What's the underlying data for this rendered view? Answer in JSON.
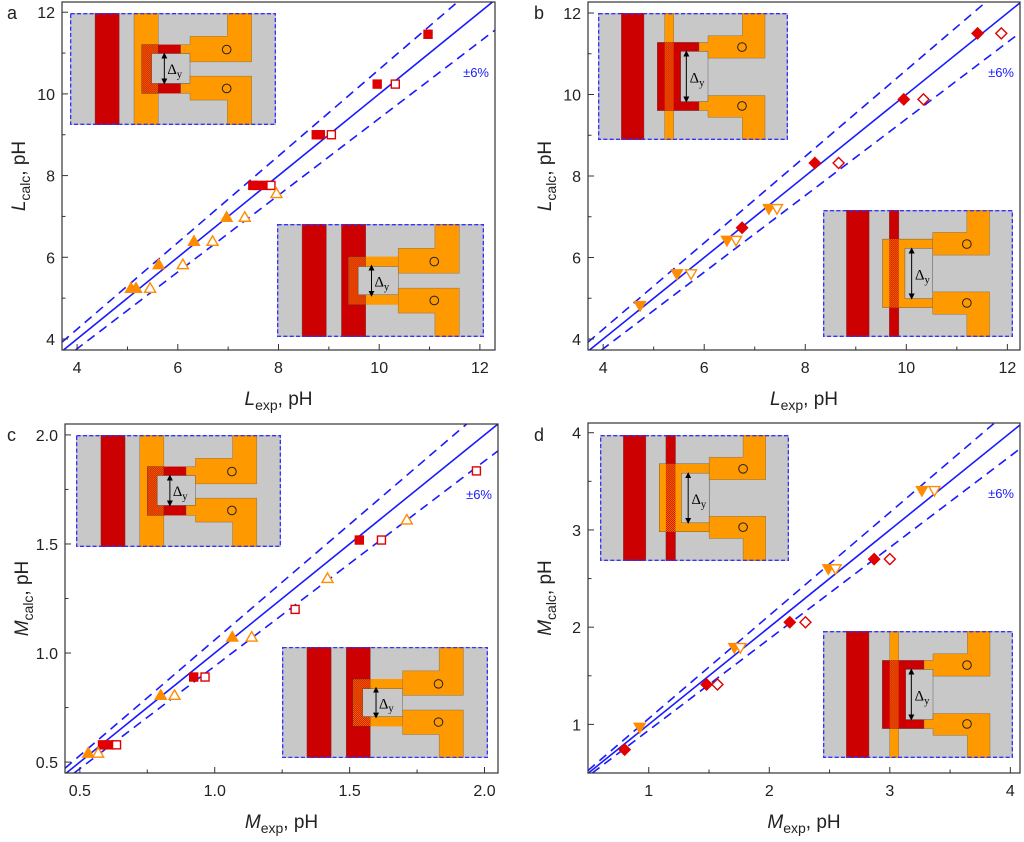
{
  "colors": {
    "line": "#1a1aff",
    "red": "#e00000",
    "orange": "#ff8c00",
    "inset_gray": "#c8c8c8",
    "inset_red": "#cc0000",
    "inset_orange": "#ff9900"
  },
  "inset_label": {
    "delta": "Δ",
    "sub": "y"
  },
  "chart_data": [
    {
      "type": "scatter",
      "panel": "a",
      "xlabel": {
        "sym": "L",
        "sub": "exp",
        "unit": ", pH"
      },
      "ylabel": {
        "sym": "L",
        "sub": "calc",
        "unit": ", pH"
      },
      "xlim": [
        3.7,
        12.3
      ],
      "ylim": [
        3.73,
        12.25
      ],
      "xticks": [
        4,
        6,
        8,
        10,
        12
      ],
      "xtick_labels": [
        "4",
        "6",
        "8",
        "10",
        "12"
      ],
      "xminor": [
        5,
        7,
        9,
        11
      ],
      "yticks": [
        4,
        6,
        8,
        10,
        12
      ],
      "ytick_labels": [
        "4",
        "6",
        "8",
        "10",
        "12"
      ],
      "yminor": [
        5,
        7,
        9,
        11
      ],
      "band_label": "±6%",
      "band_fraction": 0.06,
      "series": [
        {
          "name": "squares-filled",
          "marker": "square",
          "filled": true,
          "color": "#e00000",
          "points": [
            [
              10.97,
              11.46
            ],
            [
              9.96,
              10.24
            ],
            [
              8.75,
              9.0
            ],
            [
              8.83,
              9.0
            ],
            [
              7.49,
              7.76
            ],
            [
              7.58,
              7.76
            ],
            [
              7.75,
              7.76
            ]
          ]
        },
        {
          "name": "squares-open",
          "marker": "square",
          "filled": false,
          "color": "#e00000",
          "points": [
            [
              10.32,
              10.24
            ],
            [
              9.05,
              9.0
            ],
            [
              7.85,
              7.76
            ]
          ]
        },
        {
          "name": "triangles-filled",
          "marker": "triangle-up",
          "filled": true,
          "color": "#ff8c00",
          "points": [
            [
              6.97,
              6.98
            ],
            [
              6.32,
              6.39
            ],
            [
              5.62,
              5.82
            ],
            [
              5.07,
              5.24
            ],
            [
              5.17,
              5.24
            ]
          ]
        },
        {
          "name": "triangles-open",
          "marker": "triangle-up",
          "filled": false,
          "color": "#ff8c00",
          "points": [
            [
              7.96,
              7.56
            ],
            [
              7.33,
              6.98
            ],
            [
              6.69,
              6.39
            ],
            [
              6.1,
              5.82
            ],
            [
              5.45,
              5.24
            ]
          ]
        }
      ]
    },
    {
      "type": "scatter",
      "panel": "b",
      "xlabel": {
        "sym": "L",
        "sub": "exp",
        "unit": ", pH"
      },
      "ylabel": {
        "sym": "L",
        "sub": "calc",
        "unit": ", pH"
      },
      "xlim": [
        3.7,
        12.25
      ],
      "ylim": [
        3.73,
        12.27
      ],
      "xticks": [
        4,
        6,
        8,
        10,
        12
      ],
      "xtick_labels": [
        "4",
        "6",
        "8",
        "10",
        "12"
      ],
      "xminor": [
        5,
        7,
        9,
        11
      ],
      "yticks": [
        4,
        6,
        8,
        10,
        12
      ],
      "ytick_labels": [
        "4",
        "6",
        "8",
        "10",
        "12"
      ],
      "yminor": [
        5,
        7,
        9,
        11
      ],
      "band_label": "±6%",
      "band_fraction": 0.06,
      "series": [
        {
          "name": "diamonds-filled",
          "marker": "diamond",
          "filled": true,
          "color": "#e00000",
          "points": [
            [
              11.41,
              11.5
            ],
            [
              9.95,
              9.88
            ],
            [
              8.19,
              8.32
            ],
            [
              6.75,
              6.73
            ]
          ]
        },
        {
          "name": "diamonds-open",
          "marker": "diamond",
          "filled": false,
          "color": "#e00000",
          "points": [
            [
              11.88,
              11.5
            ],
            [
              10.34,
              9.88
            ],
            [
              8.66,
              8.32
            ]
          ]
        },
        {
          "name": "triangles-down-filled",
          "marker": "triangle-down",
          "filled": true,
          "color": "#ff8c00",
          "points": [
            [
              4.73,
              4.82
            ],
            [
              5.46,
              5.6
            ],
            [
              6.45,
              6.42
            ],
            [
              7.28,
              7.2
            ]
          ]
        },
        {
          "name": "triangles-down-open",
          "marker": "triangle-down",
          "filled": false,
          "color": "#ff8c00",
          "points": [
            [
              5.74,
              5.6
            ],
            [
              6.63,
              6.42
            ],
            [
              7.44,
              7.2
            ]
          ]
        }
      ]
    },
    {
      "type": "scatter",
      "panel": "c",
      "xlabel": {
        "sym": "M",
        "sub": "exp",
        "unit": ", pH"
      },
      "ylabel": {
        "sym": "M",
        "sub": "calc",
        "unit": ", pH"
      },
      "xlim": [
        0.445,
        2.05
      ],
      "ylim": [
        0.45,
        2.05
      ],
      "xticks": [
        0.5,
        1.0,
        1.5,
        2.0
      ],
      "xtick_labels": [
        "0.5",
        "1.0",
        "1.5",
        "2.0"
      ],
      "xminor": [
        0.75,
        1.25,
        1.75
      ],
      "yticks": [
        0.5,
        1.0,
        1.5,
        2.0
      ],
      "ytick_labels": [
        "0.5",
        "1.0",
        "1.5",
        "2.0"
      ],
      "yminor": [
        0.75,
        1.25,
        1.75
      ],
      "band_label": "±6%",
      "band_fraction": 0.06,
      "series": [
        {
          "name": "squares-filled",
          "marker": "square",
          "filled": true,
          "color": "#e00000",
          "points": [
            [
              1.536,
              1.518
            ],
            [
              0.922,
              0.89
            ],
            [
              0.584,
              0.579
            ],
            [
              0.611,
              0.579
            ]
          ]
        },
        {
          "name": "squares-open",
          "marker": "square",
          "filled": false,
          "color": "#e00000",
          "points": [
            [
              1.97,
              1.835
            ],
            [
              1.618,
              1.518
            ],
            [
              1.298,
              1.2
            ],
            [
              0.964,
              0.89
            ],
            [
              0.636,
              0.579
            ]
          ]
        },
        {
          "name": "triangles-filled",
          "marker": "triangle-up",
          "filled": true,
          "color": "#ff8c00",
          "points": [
            [
              1.065,
              1.073
            ],
            [
              0.8,
              0.806
            ],
            [
              0.531,
              0.541
            ]
          ]
        },
        {
          "name": "triangles-open",
          "marker": "triangle-up",
          "filled": false,
          "color": "#ff8c00",
          "points": [
            [
              1.712,
              1.61
            ],
            [
              1.418,
              1.342
            ],
            [
              1.137,
              1.073
            ],
            [
              0.851,
              0.806
            ],
            [
              0.568,
              0.541
            ]
          ]
        }
      ]
    },
    {
      "type": "scatter",
      "panel": "d",
      "xlabel": {
        "sym": "M",
        "sub": "exp",
        "unit": ", pH"
      },
      "ylabel": {
        "sym": "M",
        "sub": "calc",
        "unit": ", pH"
      },
      "xlim": [
        0.496,
        4.08
      ],
      "ylim": [
        0.5,
        4.1
      ],
      "xticks": [
        1,
        2,
        3,
        4
      ],
      "xtick_labels": [
        "1",
        "2",
        "3",
        "4"
      ],
      "xminor": [
        1.5,
        2.5,
        3.5
      ],
      "yticks": [
        1,
        2,
        3,
        4
      ],
      "ytick_labels": [
        "1",
        "2",
        "3",
        "4"
      ],
      "yminor": [
        1.5,
        2.5,
        3.5
      ],
      "band_label": "±6%",
      "band_fraction": 0.06,
      "series": [
        {
          "name": "diamonds-filled",
          "marker": "diamond",
          "filled": true,
          "color": "#e00000",
          "points": [
            [
              2.87,
              2.7
            ],
            [
              2.17,
              2.05
            ],
            [
              1.48,
              1.41
            ],
            [
              0.8,
              0.74
            ]
          ]
        },
        {
          "name": "diamonds-open",
          "marker": "diamond",
          "filled": false,
          "color": "#e00000",
          "points": [
            [
              3.0,
              2.7
            ],
            [
              2.3,
              2.05
            ],
            [
              1.57,
              1.41
            ]
          ]
        },
        {
          "name": "triangles-down-filled",
          "marker": "triangle-down",
          "filled": true,
          "color": "#ff8c00",
          "points": [
            [
              3.266,
              3.405
            ],
            [
              2.49,
              2.6
            ],
            [
              1.71,
              1.79
            ],
            [
              0.925,
              0.97
            ]
          ]
        },
        {
          "name": "triangles-down-open",
          "marker": "triangle-down",
          "filled": false,
          "color": "#ff8c00",
          "points": [
            [
              3.37,
              3.405
            ],
            [
              2.55,
              2.6
            ],
            [
              1.76,
              1.79
            ]
          ]
        }
      ]
    }
  ]
}
